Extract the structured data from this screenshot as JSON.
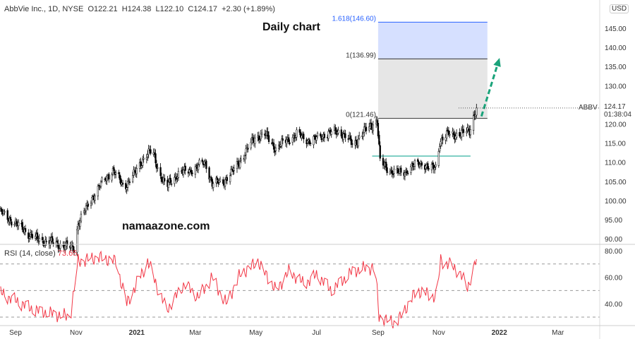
{
  "header": {
    "symbol_line": "AbbVie Inc., 1D, NYSE",
    "open": "O122.21",
    "high": "H124.38",
    "low": "L122.10",
    "close": "C124.17",
    "change": "+2.30 (+1.89%)"
  },
  "annotations": {
    "title": "Daily chart",
    "watermark": "namaazone.com",
    "ticker_label": "ABBV",
    "last_price": "124.17",
    "countdown": "01:38:04",
    "currency": "USD"
  },
  "fib": {
    "levels": [
      {
        "label": "1.618(146.60)",
        "value": 146.6,
        "color": "#2962ff"
      },
      {
        "label": "1(136.99)",
        "value": 136.99,
        "color": "#333333"
      },
      {
        "label": "0(121.46)",
        "value": 121.46,
        "color": "#333333"
      }
    ],
    "start": "2021-09-01",
    "end": "2021-12-20",
    "fill_upper": "#d6e0ff",
    "fill_lower": "#e6e6e6"
  },
  "support_line": {
    "value": 111.6,
    "start": "2021-08-26",
    "end": "2021-12-03",
    "color": "#7fcfc4"
  },
  "projection_arrow": {
    "from": [
      "2021-12-14",
      122
    ],
    "to": [
      "2021-12-31",
      136.2
    ],
    "color": "#1aa37a"
  },
  "rsi": {
    "label": "RSI (14, close)",
    "value": "73.65",
    "color": "#f23645",
    "levels": [
      70,
      50,
      30
    ]
  },
  "chart_data": {
    "type": "candlestick",
    "price_ticks": [
      "145.00",
      "140.00",
      "135.00",
      "130.00",
      "125.00",
      "120.00",
      "115.00",
      "110.00",
      "105.00",
      "100.00",
      "95.00",
      "90.00"
    ],
    "rsi_ticks": [
      "80.00",
      "60.00",
      "40.00"
    ],
    "x_ticks": [
      {
        "label": "Sep",
        "date": "2020-09-01"
      },
      {
        "label": "Nov",
        "date": "2020-11-01"
      },
      {
        "label": "2021",
        "date": "2021-01-01"
      },
      {
        "label": "Mar",
        "date": "2021-03-01"
      },
      {
        "label": "May",
        "date": "2021-05-01"
      },
      {
        "label": "Jul",
        "date": "2021-07-01"
      },
      {
        "label": "Sep",
        "date": "2021-09-01"
      },
      {
        "label": "Nov",
        "date": "2021-11-01"
      },
      {
        "label": "2022",
        "date": "2022-01-01"
      },
      {
        "label": "Mar",
        "date": "2022-03-01"
      }
    ],
    "ylim": [
      88,
      150
    ],
    "close_keypoints": [
      [
        "2020-08-17",
        97
      ],
      [
        "2020-09-21",
        90
      ],
      [
        "2020-10-30",
        87.5
      ],
      [
        "2020-11-03",
        94
      ],
      [
        "2020-11-17",
        100.7
      ],
      [
        "2020-11-28",
        105
      ],
      [
        "2020-12-08",
        108
      ],
      [
        "2020-12-19",
        103.5
      ],
      [
        "2020-12-30",
        107
      ],
      [
        "2021-01-10",
        112
      ],
      [
        "2021-01-17",
        112.7
      ],
      [
        "2021-01-24",
        107
      ],
      [
        "2021-01-31",
        103.5
      ],
      [
        "2021-02-11",
        107
      ],
      [
        "2021-02-25",
        108
      ],
      [
        "2021-03-11",
        110
      ],
      [
        "2021-03-18",
        104.4
      ],
      [
        "2021-03-29",
        105
      ],
      [
        "2021-04-09",
        108
      ],
      [
        "2021-04-19",
        112
      ],
      [
        "2021-04-30",
        116.4
      ],
      [
        "2021-05-10",
        117.3
      ],
      [
        "2021-05-21",
        113.6
      ],
      [
        "2021-05-31",
        115.5
      ],
      [
        "2021-06-11",
        117.3
      ],
      [
        "2021-06-25",
        115.5
      ],
      [
        "2021-07-09",
        117.3
      ],
      [
        "2021-07-24",
        118.2
      ],
      [
        "2021-08-07",
        114.6
      ],
      [
        "2021-08-18",
        118
      ],
      [
        "2021-08-31",
        121
      ],
      [
        "2021-09-03",
        110
      ],
      [
        "2021-09-12",
        108
      ],
      [
        "2021-09-24",
        107
      ],
      [
        "2021-10-06",
        109
      ],
      [
        "2021-10-16",
        110
      ],
      [
        "2021-10-23",
        108
      ],
      [
        "2021-10-30",
        109
      ],
      [
        "2021-11-02",
        115.5
      ],
      [
        "2021-11-10",
        117.3
      ],
      [
        "2021-11-21",
        117.3
      ],
      [
        "2021-12-02",
        118.2
      ],
      [
        "2021-12-06",
        122
      ],
      [
        "2021-12-09",
        124.17
      ]
    ],
    "rsi_keypoints": [
      [
        "2020-08-17",
        48
      ],
      [
        "2020-09-21",
        35
      ],
      [
        "2020-10-26",
        30
      ],
      [
        "2020-11-03",
        72
      ],
      [
        "2020-11-23",
        75
      ],
      [
        "2020-12-11",
        72
      ],
      [
        "2020-12-22",
        40
      ],
      [
        "2021-01-12",
        72
      ],
      [
        "2021-01-31",
        35
      ],
      [
        "2021-02-18",
        55
      ],
      [
        "2021-03-04",
        45
      ],
      [
        "2021-03-18",
        60
      ],
      [
        "2021-04-01",
        40
      ],
      [
        "2021-04-15",
        62
      ],
      [
        "2021-05-03",
        72
      ],
      [
        "2021-05-21",
        50
      ],
      [
        "2021-06-04",
        65
      ],
      [
        "2021-06-18",
        55
      ],
      [
        "2021-07-02",
        62
      ],
      [
        "2021-07-16",
        50
      ],
      [
        "2021-08-07",
        65
      ],
      [
        "2021-08-29",
        68
      ],
      [
        "2021-09-02",
        30
      ],
      [
        "2021-09-19",
        25
      ],
      [
        "2021-10-10",
        50
      ],
      [
        "2021-10-30",
        45
      ],
      [
        "2021-11-03",
        73
      ],
      [
        "2021-11-21",
        65
      ],
      [
        "2021-11-30",
        52
      ],
      [
        "2021-12-09",
        73.65
      ]
    ]
  }
}
